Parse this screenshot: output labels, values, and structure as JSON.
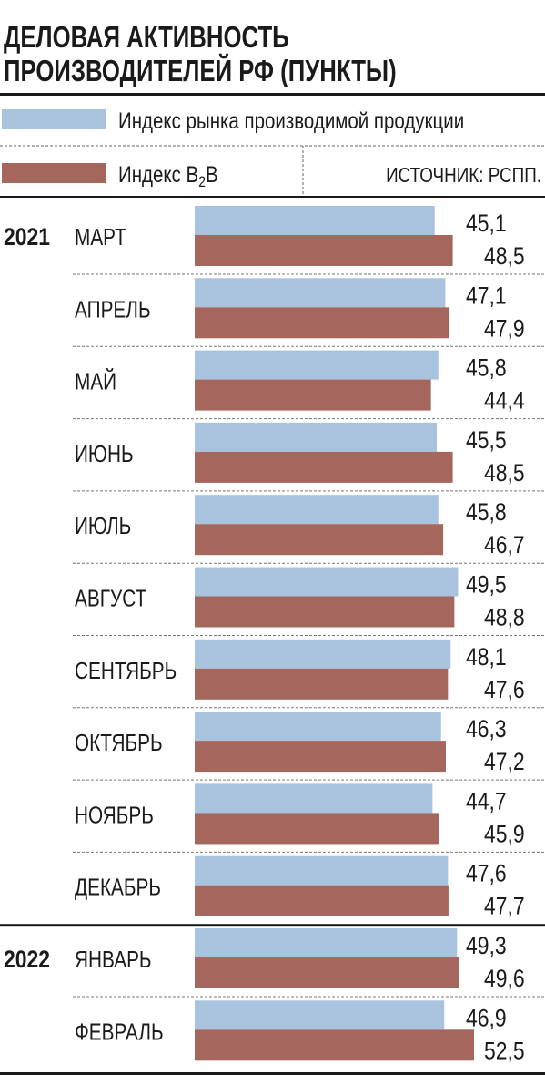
{
  "chart_data": {
    "type": "bar",
    "orientation": "horizontal",
    "title_lines": [
      "ДЕЛОВАЯ АКТИВНОСТЬ",
      "ПРОИЗВОДИТЕЛЕЙ РФ (ПУНКТЫ)"
    ],
    "source": "ИСТОЧНИК: РСПП.",
    "series": [
      {
        "name": "Индекс рынка производимой продукции",
        "color": "#a9c3de",
        "values": [
          45.1,
          47.1,
          45.8,
          45.5,
          45.8,
          49.5,
          48.1,
          46.3,
          44.7,
          47.6,
          49.3,
          46.9
        ]
      },
      {
        "name": "Индекс B2B",
        "name_parts": [
          "Индекс B",
          "2",
          "B"
        ],
        "color": "#a5665e",
        "values": [
          48.5,
          47.9,
          44.4,
          48.5,
          46.7,
          48.8,
          47.6,
          47.2,
          45.9,
          47.7,
          49.6,
          52.5
        ]
      }
    ],
    "groups": [
      {
        "year": "2021",
        "categories": [
          "МАРТ",
          "АПРЕЛЬ",
          "МАЙ",
          "ИЮНЬ",
          "ИЮЛЬ",
          "АВГУСТ",
          "СЕНТЯБРЬ",
          "ОКТЯБРЬ",
          "НОЯБРЬ",
          "ДЕКАБРЬ"
        ]
      },
      {
        "year": "2022",
        "categories": [
          "ЯНВАРЬ",
          "ФЕВРАЛЬ"
        ]
      }
    ],
    "labels": [
      [
        "45,1",
        "48,5"
      ],
      [
        "47,1",
        "47,9"
      ],
      [
        "45,8",
        "44,4"
      ],
      [
        "45,5",
        "48,5"
      ],
      [
        "45,8",
        "46,7"
      ],
      [
        "49,5",
        "48,8"
      ],
      [
        "48,1",
        "47,6"
      ],
      [
        "46,3",
        "47,2"
      ],
      [
        "44,7",
        "45,9"
      ],
      [
        "47,6",
        "47,7"
      ],
      [
        "49,3",
        "49,6"
      ],
      [
        "46,9",
        "52,5"
      ]
    ]
  }
}
